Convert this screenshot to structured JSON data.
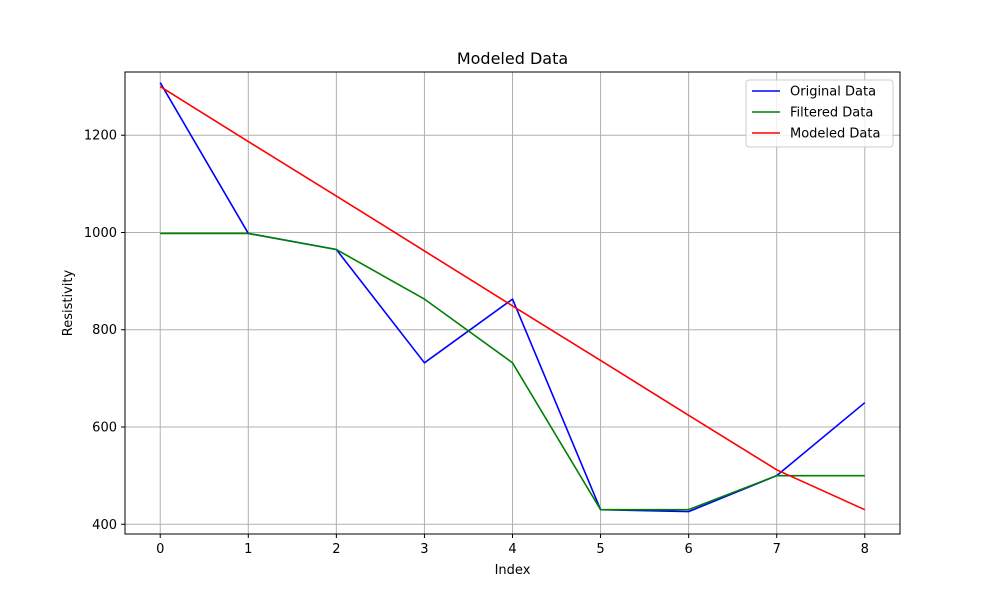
{
  "chart_data": {
    "type": "line",
    "title": "Modeled Data",
    "xlabel": "Index",
    "ylabel": "Resistivity",
    "x": [
      0,
      1,
      2,
      3,
      4,
      5,
      6,
      7,
      8
    ],
    "xlim": [
      -0.4,
      8.4
    ],
    "ylim": [
      380,
      1330
    ],
    "xticks": [
      0,
      1,
      2,
      3,
      4,
      5,
      6,
      7,
      8
    ],
    "yticks": [
      400,
      600,
      800,
      1000,
      1200
    ],
    "grid": true,
    "legend_position": "top-right",
    "series": [
      {
        "name": "Original Data",
        "color": "#0000ff",
        "values": [
          1308,
          998,
          965,
          732,
          863,
          430,
          426,
          500,
          650
        ]
      },
      {
        "name": "Filtered Data",
        "color": "#008000",
        "values": [
          998,
          998,
          965,
          863,
          732,
          430,
          430,
          500,
          500
        ]
      },
      {
        "name": "Modeled Data",
        "color": "#ff0000",
        "values": [
          1300,
          1187,
          1075,
          962,
          849,
          737,
          624,
          512,
          430
        ]
      }
    ]
  }
}
